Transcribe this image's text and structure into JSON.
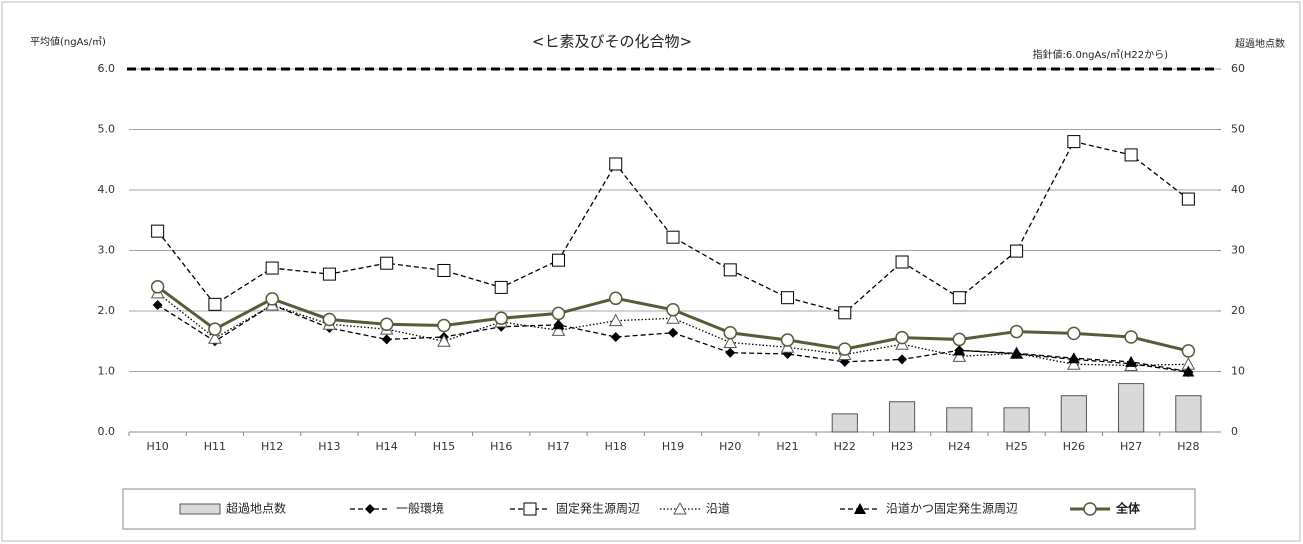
{
  "chart_data": {
    "type": "line",
    "title": "<ヒ素及びその化合物>",
    "y_label": "平均値(ngAs/㎥)",
    "y2_label": "超過地点数",
    "reference_line": {
      "value": 6,
      "label": "指針値:6.0ngAs/㎥(H22から)"
    },
    "categories": [
      "H10",
      "H11",
      "H12",
      "H13",
      "H14",
      "H15",
      "H16",
      "H17",
      "H18",
      "H19",
      "H20",
      "H21",
      "H22",
      "H23",
      "H24",
      "H25",
      "H26",
      "H27",
      "H28"
    ],
    "ylim": [
      0,
      6
    ],
    "yticks": [
      {
        "value": 0,
        "label": "0.0"
      },
      {
        "value": 1,
        "label": "1.0"
      },
      {
        "value": 2,
        "label": "2.0"
      },
      {
        "value": 3,
        "label": "3.0"
      },
      {
        "value": 4,
        "label": "4.0"
      },
      {
        "value": 5,
        "label": "5.0"
      },
      {
        "value": 6,
        "label": "6.0"
      }
    ],
    "y2lim": [
      0,
      60
    ],
    "y2ticks": [
      0,
      10,
      20,
      30,
      40,
      50,
      60
    ],
    "grid": true,
    "legend": "bottom",
    "series": [
      {
        "name": "超過地点数",
        "type": "bar",
        "axis": "y2",
        "color": "#d9d9d9",
        "values": [
          null,
          null,
          null,
          null,
          null,
          null,
          null,
          null,
          null,
          null,
          null,
          null,
          3,
          5,
          4,
          4,
          6,
          8,
          6
        ]
      },
      {
        "name": "一般環境",
        "type": "line",
        "color": "#000000",
        "marker": "diamond",
        "dash": "dashed",
        "values": [
          2.1,
          1.5,
          2.1,
          1.72,
          1.53,
          1.57,
          1.74,
          1.77,
          1.57,
          1.64,
          1.31,
          1.29,
          1.16,
          1.2,
          1.35,
          1.29,
          1.2,
          1.13,
          0.99
        ]
      },
      {
        "name": "固定発生源周辺",
        "type": "line",
        "color": "#000000",
        "marker": "square",
        "dash": "dashed",
        "values": [
          3.32,
          2.11,
          2.71,
          2.61,
          2.79,
          2.67,
          2.39,
          2.84,
          4.43,
          3.22,
          2.68,
          2.22,
          1.97,
          2.81,
          2.22,
          2.99,
          4.8,
          4.58,
          3.85
        ]
      },
      {
        "name": "沿道",
        "type": "line",
        "color": "#000000",
        "marker": "triangle-open",
        "dash": "dotted",
        "values": [
          2.3,
          1.55,
          2.1,
          1.78,
          1.7,
          1.5,
          1.82,
          1.68,
          1.84,
          1.88,
          1.48,
          1.4,
          1.28,
          1.45,
          1.25,
          1.3,
          1.12,
          1.1,
          1.12
        ]
      },
      {
        "name": "沿道かつ固定発生源周辺",
        "type": "line",
        "color": "#000000",
        "marker": "triangle",
        "dash": "dashed",
        "values": [
          null,
          null,
          null,
          null,
          null,
          null,
          null,
          1.78,
          null,
          null,
          null,
          null,
          null,
          null,
          1.35,
          1.3,
          1.22,
          1.16,
          1.0
        ]
      },
      {
        "name": "全体",
        "type": "line",
        "color": "#5a5a3a",
        "marker": "circle",
        "dash": "solid",
        "width": 3,
        "values": [
          2.4,
          1.7,
          2.2,
          1.86,
          1.78,
          1.76,
          1.88,
          1.96,
          2.21,
          2.02,
          1.64,
          1.52,
          1.37,
          1.56,
          1.53,
          1.66,
          1.63,
          1.57,
          1.34
        ]
      }
    ]
  }
}
